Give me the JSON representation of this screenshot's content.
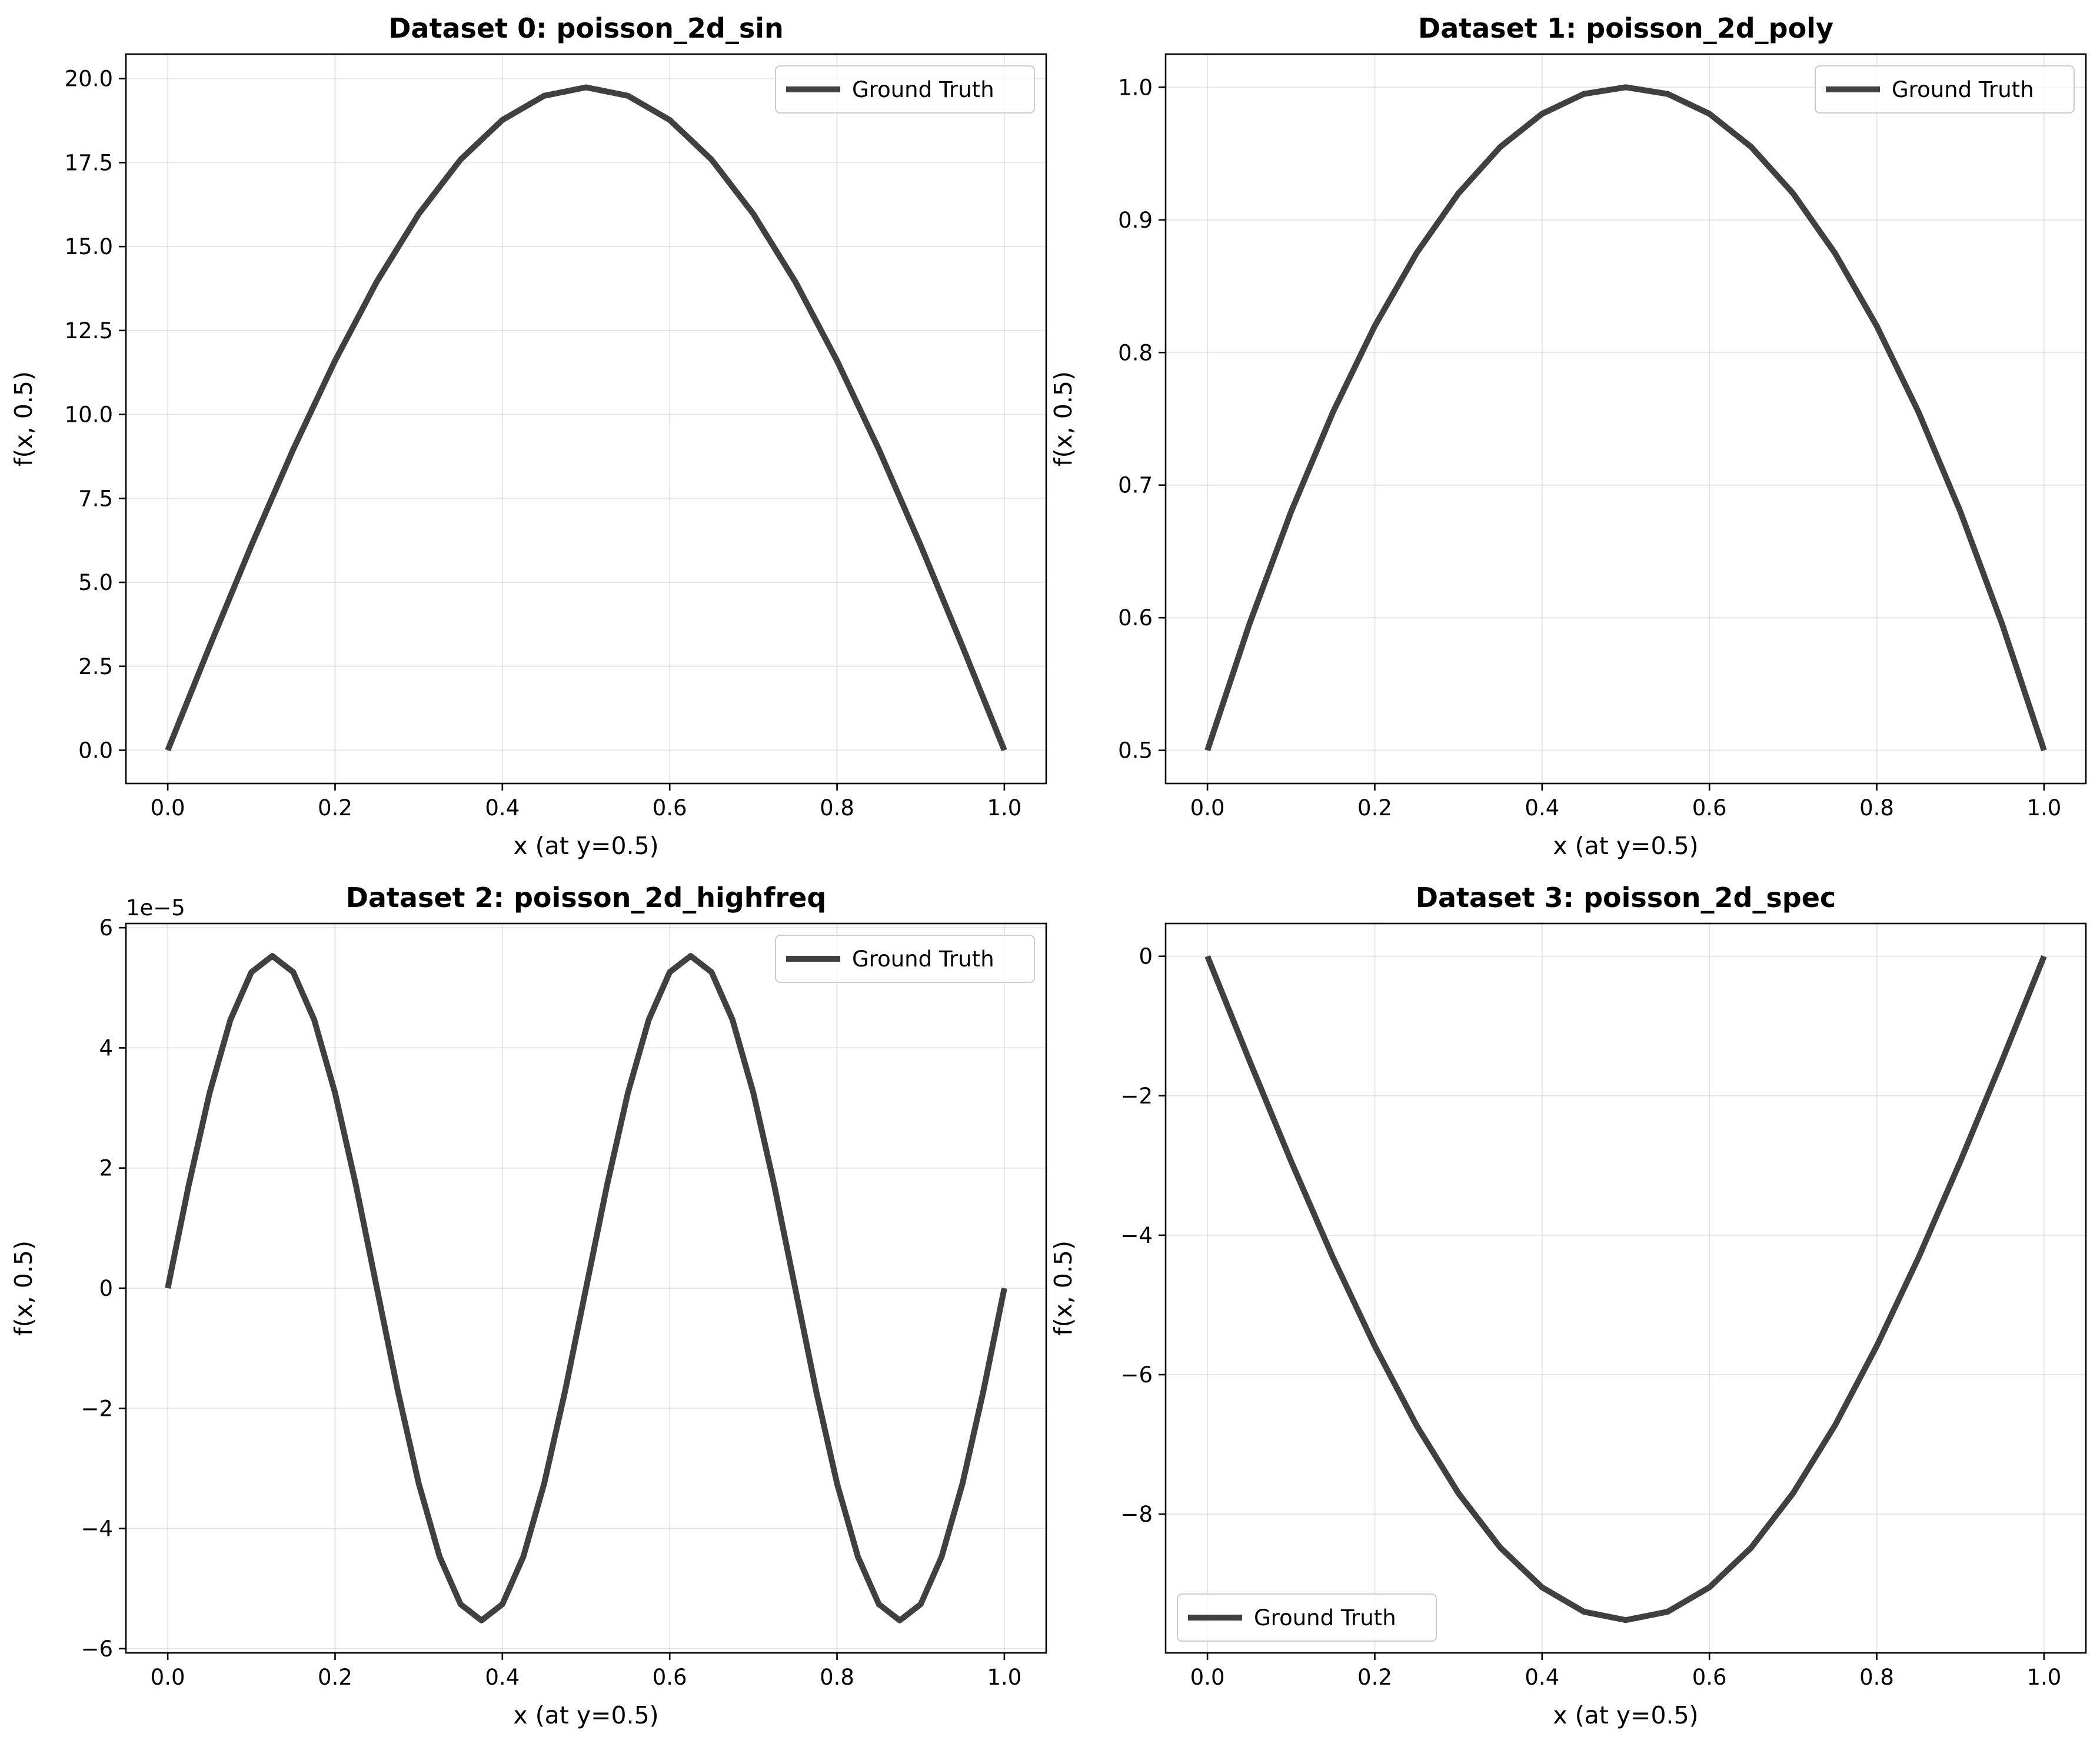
{
  "chart_data": [
    {
      "type": "line",
      "title": "Dataset 0: poisson_2d_sin",
      "xlabel": "x (at y=0.5)",
      "ylabel": "f(x, 0.5)",
      "xlim": [
        -0.05,
        1.05
      ],
      "ylim": [
        -0.99,
        20.73
      ],
      "xticks": [
        0.0,
        0.2,
        0.4,
        0.6,
        0.8,
        1.0
      ],
      "xtick_labels": [
        "0.0",
        "0.2",
        "0.4",
        "0.6",
        "0.8",
        "1.0"
      ],
      "yticks": [
        0,
        2.5,
        5,
        7.5,
        10,
        12.5,
        15,
        17.5,
        20
      ],
      "ytick_labels": [
        "0.0",
        "2.5",
        "5.0",
        "7.5",
        "10.0",
        "12.5",
        "15.0",
        "17.5",
        "20.0"
      ],
      "offset_label": "",
      "grid": true,
      "legend": {
        "position": "top-right",
        "entries": [
          "Ground Truth"
        ]
      },
      "series": [
        {
          "name": "Ground Truth",
          "color": "#404040",
          "x": [
            0,
            0.05,
            0.1,
            0.15,
            0.2,
            0.25,
            0.3,
            0.35,
            0.4,
            0.45,
            0.5,
            0.55,
            0.6,
            0.65,
            0.7,
            0.75,
            0.8,
            0.85,
            0.9,
            0.95,
            1.0
          ],
          "y": [
            0.0,
            3.09,
            6.1,
            8.96,
            11.6,
            13.96,
            15.97,
            17.59,
            18.77,
            19.49,
            19.74,
            19.49,
            18.77,
            17.59,
            15.97,
            13.96,
            11.6,
            8.96,
            6.1,
            3.09,
            0.0
          ]
        }
      ]
    },
    {
      "type": "line",
      "title": "Dataset 1: poisson_2d_poly",
      "xlabel": "x (at y=0.5)",
      "ylabel": "f(x, 0.5)",
      "xlim": [
        -0.05,
        1.05
      ],
      "ylim": [
        0.475,
        1.025
      ],
      "xticks": [
        0.0,
        0.2,
        0.4,
        0.6,
        0.8,
        1.0
      ],
      "xtick_labels": [
        "0.0",
        "0.2",
        "0.4",
        "0.6",
        "0.8",
        "1.0"
      ],
      "yticks": [
        0.5,
        0.6,
        0.7,
        0.8,
        0.9,
        1.0
      ],
      "ytick_labels": [
        "0.5",
        "0.6",
        "0.7",
        "0.8",
        "0.9",
        "1.0"
      ],
      "offset_label": "",
      "grid": true,
      "legend": {
        "position": "top-right",
        "entries": [
          "Ground Truth"
        ]
      },
      "series": [
        {
          "name": "Ground Truth",
          "color": "#404040",
          "x": [
            0,
            0.05,
            0.1,
            0.15,
            0.2,
            0.25,
            0.3,
            0.35,
            0.4,
            0.45,
            0.5,
            0.55,
            0.6,
            0.65,
            0.7,
            0.75,
            0.8,
            0.85,
            0.9,
            0.95,
            1.0
          ],
          "y": [
            0.5,
            0.595,
            0.68,
            0.755,
            0.82,
            0.875,
            0.92,
            0.955,
            0.98,
            0.995,
            1.0,
            0.995,
            0.98,
            0.955,
            0.92,
            0.875,
            0.82,
            0.755,
            0.68,
            0.595,
            0.5
          ]
        }
      ]
    },
    {
      "type": "line",
      "title": "Dataset 2: poisson_2d_highfreq",
      "xlabel": "x (at y=0.5)",
      "ylabel": "f(x, 0.5)",
      "xlim": [
        -0.05,
        1.05
      ],
      "ylim": [
        -6.07,
        6.07
      ],
      "xticks": [
        0.0,
        0.2,
        0.4,
        0.6,
        0.8,
        1.0
      ],
      "xtick_labels": [
        "0.0",
        "0.2",
        "0.4",
        "0.6",
        "0.8",
        "1.0"
      ],
      "yticks": [
        -6,
        -4,
        -2,
        0,
        2,
        4,
        6
      ],
      "ytick_labels": [
        "−6",
        "−4",
        "−2",
        "0",
        "2",
        "4",
        "6"
      ],
      "offset_label": "1e−5",
      "grid": true,
      "legend": {
        "position": "top-right",
        "entries": [
          "Ground Truth"
        ]
      },
      "series": [
        {
          "name": "Ground Truth",
          "color": "#404040",
          "x": [
            0,
            0.025,
            0.05,
            0.075,
            0.1,
            0.125,
            0.15,
            0.175,
            0.2,
            0.225,
            0.25,
            0.275,
            0.3,
            0.325,
            0.35,
            0.375,
            0.4,
            0.425,
            0.45,
            0.475,
            0.5,
            0.525,
            0.55,
            0.575,
            0.6,
            0.625,
            0.65,
            0.675,
            0.7,
            0.725,
            0.75,
            0.775,
            0.8,
            0.825,
            0.85,
            0.875,
            0.9,
            0.925,
            0.95,
            0.975,
            1.0
          ],
          "y": [
            0.0,
            1.71,
            3.25,
            4.47,
            5.26,
            5.53,
            5.26,
            4.47,
            3.25,
            1.71,
            0.0,
            -1.71,
            -3.25,
            -4.47,
            -5.26,
            -5.53,
            -5.26,
            -4.47,
            -3.25,
            -1.71,
            0.0,
            1.71,
            3.25,
            4.47,
            5.26,
            5.53,
            5.26,
            4.47,
            3.25,
            1.71,
            0.0,
            -1.71,
            -3.25,
            -4.47,
            -5.26,
            -5.53,
            -5.26,
            -4.47,
            -3.25,
            -1.71,
            0.0
          ]
        }
      ]
    },
    {
      "type": "line",
      "title": "Dataset 3: poisson_2d_spec",
      "xlabel": "x (at y=0.5)",
      "ylabel": "f(x, 0.5)",
      "xlim": [
        -0.05,
        1.05
      ],
      "ylim": [
        -9.99,
        0.47
      ],
      "xticks": [
        0.0,
        0.2,
        0.4,
        0.6,
        0.8,
        1.0
      ],
      "xtick_labels": [
        "0.0",
        "0.2",
        "0.4",
        "0.6",
        "0.8",
        "1.0"
      ],
      "yticks": [
        -8,
        -6,
        -4,
        -2,
        0
      ],
      "ytick_labels": [
        "−8",
        "−6",
        "−4",
        "−2",
        "0"
      ],
      "offset_label": "",
      "grid": true,
      "legend": {
        "position": "bottom-left",
        "entries": [
          "Ground Truth"
        ]
      },
      "series": [
        {
          "name": "Ground Truth",
          "color": "#404040",
          "x": [
            0,
            0.05,
            0.1,
            0.15,
            0.2,
            0.25,
            0.3,
            0.35,
            0.4,
            0.45,
            0.5,
            0.55,
            0.6,
            0.65,
            0.7,
            0.75,
            0.8,
            0.85,
            0.9,
            0.95,
            1.0
          ],
          "y": [
            0.0,
            -1.49,
            -2.94,
            -4.32,
            -5.59,
            -6.73,
            -7.7,
            -8.48,
            -9.05,
            -9.4,
            -9.52,
            -9.4,
            -9.05,
            -8.48,
            -7.7,
            -6.73,
            -5.59,
            -4.32,
            -2.94,
            -1.49,
            0.0
          ]
        }
      ]
    }
  ]
}
